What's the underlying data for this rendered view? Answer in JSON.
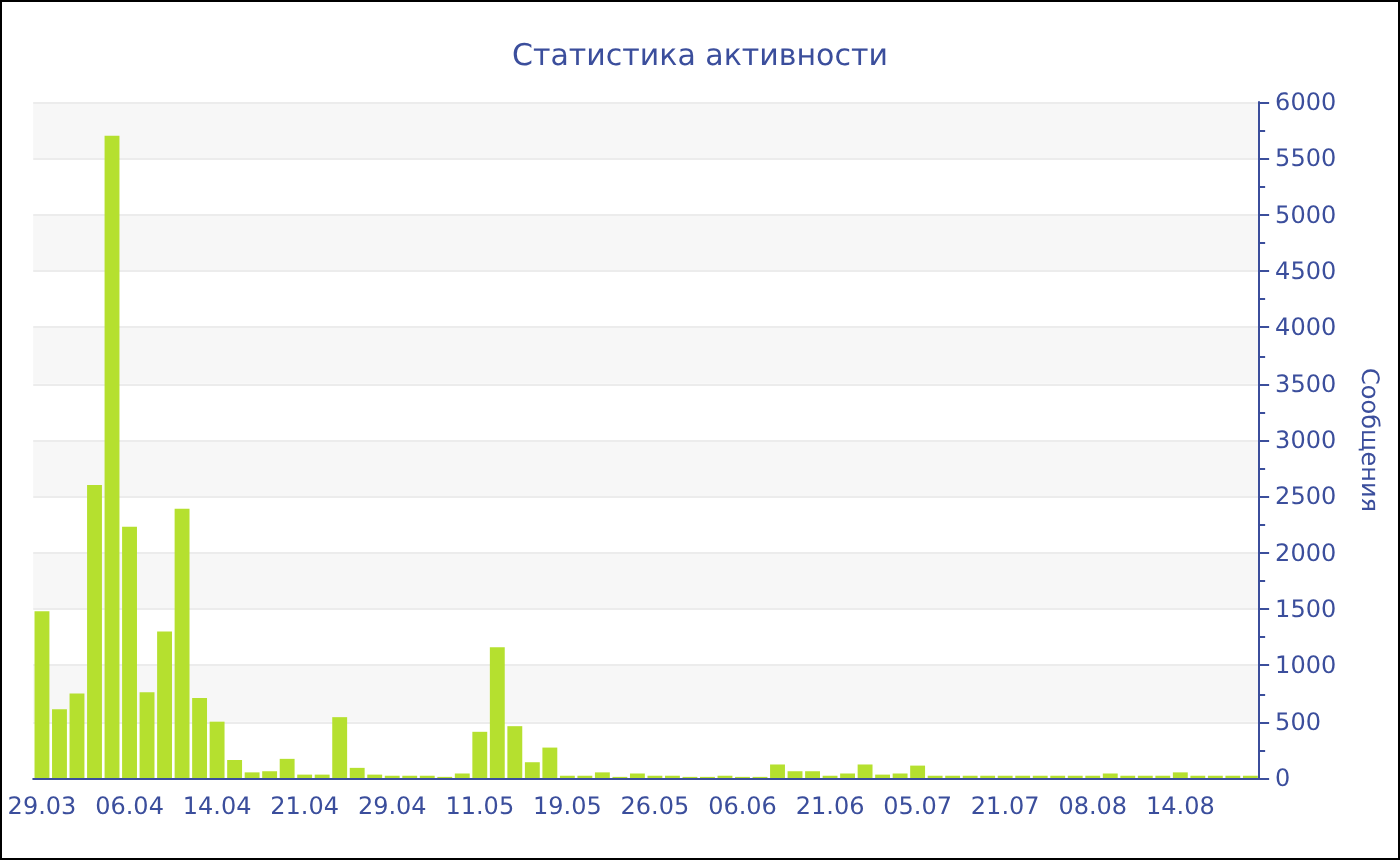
{
  "chart_data": {
    "type": "bar",
    "title": "Статистика активности",
    "ylabel": "Сообщения",
    "categories": [
      "29.03",
      null,
      null,
      null,
      null,
      "06.04",
      null,
      null,
      null,
      null,
      "14.04",
      null,
      null,
      null,
      null,
      "21.04",
      null,
      null,
      null,
      null,
      "29.04",
      null,
      null,
      null,
      null,
      "11.05",
      null,
      null,
      null,
      null,
      "19.05",
      null,
      null,
      null,
      null,
      "26.05",
      null,
      null,
      null,
      null,
      "06.06",
      null,
      null,
      null,
      null,
      "21.06",
      null,
      null,
      null,
      null,
      "05.07",
      null,
      null,
      null,
      null,
      "21.07",
      null,
      null,
      null,
      null,
      "08.08",
      null,
      null,
      null,
      null,
      "14.08",
      null,
      null,
      null,
      null
    ],
    "values": [
      1480,
      610,
      750,
      2600,
      5700,
      2230,
      760,
      1300,
      2390,
      710,
      500,
      160,
      50,
      60,
      170,
      30,
      30,
      540,
      90,
      30,
      20,
      20,
      20,
      10,
      40,
      410,
      1160,
      460,
      140,
      270,
      20,
      20,
      50,
      10,
      40,
      20,
      20,
      10,
      10,
      20,
      10,
      10,
      120,
      60,
      60,
      20,
      40,
      120,
      30,
      40,
      110,
      20,
      20,
      20,
      20,
      20,
      20,
      20,
      20,
      20,
      20,
      40,
      20,
      20,
      20,
      50,
      20,
      20,
      20,
      20
    ],
    "color": "#b5e02f",
    "ylim": [
      0,
      6000
    ],
    "yticks": [
      0,
      500,
      1000,
      1500,
      2000,
      2500,
      3000,
      3500,
      4000,
      4500,
      5000,
      5500,
      6000
    ],
    "grid": "y"
  }
}
